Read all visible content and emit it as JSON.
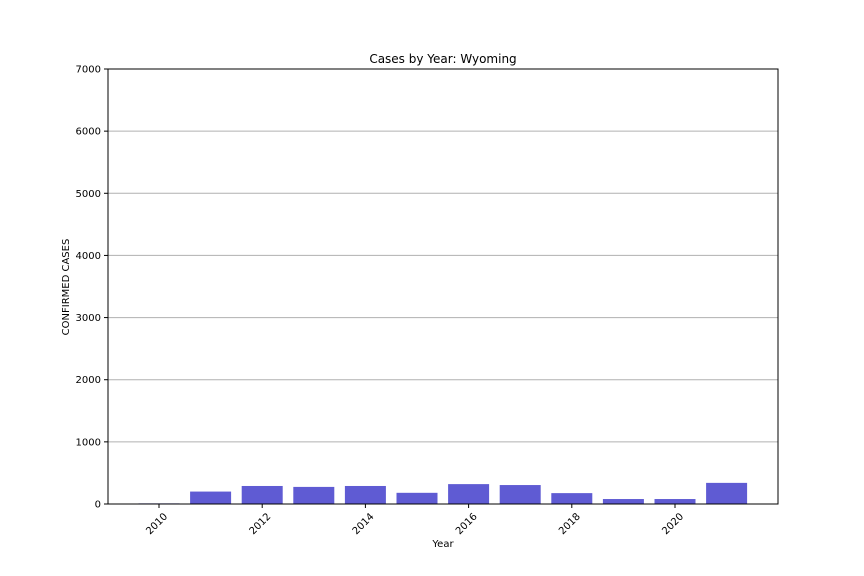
{
  "chart_data": {
    "type": "bar",
    "title": "Cases by Year: Wyoming",
    "xlabel": "Year",
    "ylabel": "CONFIRMED CASES",
    "ylim": [
      0,
      7000
    ],
    "yticks": [
      0,
      1000,
      2000,
      3000,
      4000,
      5000,
      6000,
      7000
    ],
    "xticks": [
      2010,
      2012,
      2014,
      2016,
      2018,
      2020
    ],
    "x": [
      2010,
      2011,
      2012,
      2013,
      2014,
      2015,
      2016,
      2017,
      2018,
      2019,
      2020,
      2021
    ],
    "values": [
      10,
      200,
      290,
      275,
      290,
      180,
      320,
      305,
      175,
      80,
      80,
      340
    ],
    "grid": "y",
    "bar_color": "#5f5bd3"
  }
}
